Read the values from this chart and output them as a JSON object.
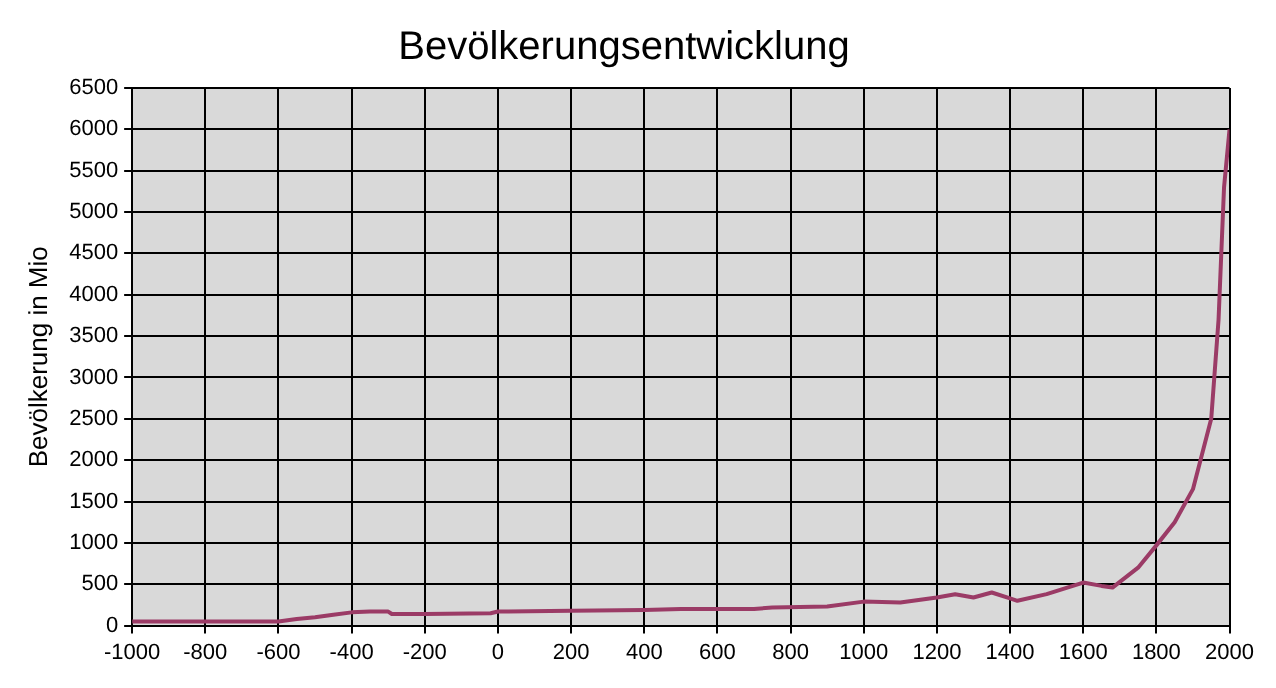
{
  "chart_data": {
    "type": "line",
    "title": "Bevölkerungsentwicklung",
    "ylabel": "Bevölkerung in Mio",
    "x": [
      -1000,
      -600,
      -550,
      -500,
      -450,
      -400,
      -350,
      -300,
      -290,
      -200,
      -20,
      0,
      200,
      400,
      500,
      700,
      750,
      900,
      1000,
      1100,
      1200,
      1250,
      1300,
      1350,
      1400,
      1420,
      1500,
      1600,
      1650,
      1680,
      1750,
      1800,
      1850,
      1900,
      1950,
      1970,
      1985,
      1990,
      2000
    ],
    "series": [
      {
        "color": "#9b3b66",
        "values": [
          50,
          50,
          80,
          100,
          130,
          160,
          170,
          170,
          140,
          140,
          150,
          170,
          180,
          190,
          200,
          200,
          220,
          230,
          290,
          280,
          340,
          380,
          340,
          400,
          330,
          300,
          380,
          520,
          480,
          460,
          700,
          970,
          1250,
          1650,
          2500,
          3700,
          5300,
          5300,
          6000
        ]
      }
    ],
    "xlim": [
      -1000,
      2000
    ],
    "xticks": [
      -1000,
      -800,
      -600,
      -400,
      -200,
      0,
      200,
      400,
      600,
      800,
      1000,
      1200,
      1400,
      1600,
      1800,
      2000
    ],
    "ylim": [
      0,
      6500
    ],
    "yticks": [
      0,
      500,
      1000,
      1500,
      2000,
      2500,
      3000,
      3500,
      4000,
      4500,
      5000,
      5500,
      6000,
      6500
    ],
    "grid": true,
    "legend": false,
    "marker": "none",
    "line_style": "solid"
  }
}
